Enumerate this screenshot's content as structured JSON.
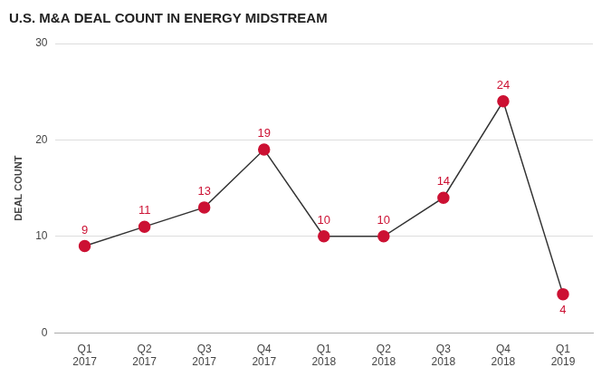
{
  "chart_data": {
    "type": "line",
    "title": "U.S. M&A DEAL COUNT IN ENERGY MIDSTREAM",
    "ylabel": "DEAL COUNT",
    "categories": [
      "Q1\n2017",
      "Q2\n2017",
      "Q3\n2017",
      "Q4\n2017",
      "Q1\n2018",
      "Q2\n2018",
      "Q3\n2018",
      "Q4\n2018",
      "Q1\n2019"
    ],
    "values": [
      9,
      11,
      13,
      19,
      10,
      10,
      14,
      24,
      4
    ],
    "color": "#cc1133",
    "marker": "circle",
    "data_labels": true,
    "ylim": [
      0,
      30
    ],
    "yticks": [
      0,
      10,
      20,
      30
    ],
    "grid": true
  }
}
